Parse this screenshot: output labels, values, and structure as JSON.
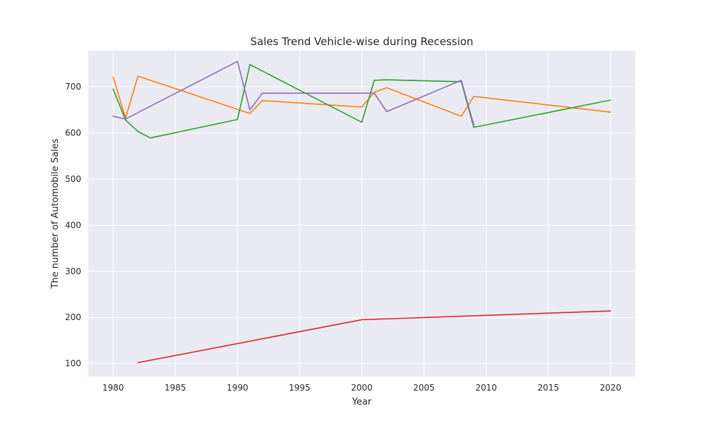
{
  "chart_data": {
    "type": "line",
    "title": "Sales Trend Vehicle-wise during Recession",
    "xlabel": "Year",
    "ylabel": "The number of Automobile Sales",
    "xlim": [
      1978,
      2022
    ],
    "ylim": [
      72,
      778
    ],
    "xticks": [
      1980,
      1985,
      1990,
      1995,
      2000,
      2005,
      2010,
      2015,
      2020
    ],
    "yticks": [
      100,
      200,
      300,
      400,
      500,
      600,
      700
    ],
    "grid": true,
    "legend": "none",
    "background": "#eaeaf2",
    "series": [
      {
        "color": "#ff7f0e",
        "x": [
          1980,
          1981,
          1982,
          1991,
          1992,
          2000,
          2001,
          2002,
          2008,
          2009,
          2020
        ],
        "y": [
          721,
          632,
          723,
          642,
          670,
          656,
          688,
          698,
          636,
          679,
          645
        ]
      },
      {
        "color": "#2ca02c",
        "x": [
          1980,
          1981,
          1982,
          1983,
          1990,
          1991,
          2000,
          2001,
          2002,
          2008,
          2009,
          2020
        ],
        "y": [
          695,
          628,
          603,
          589,
          629,
          748,
          623,
          714,
          715,
          711,
          612,
          671
        ]
      },
      {
        "color": "#9467bd",
        "x": [
          1980,
          1981,
          1990,
          1991,
          1992,
          2001,
          2002,
          2008,
          2009
        ],
        "y": [
          636,
          630,
          755,
          650,
          686,
          686,
          646,
          714,
          617
        ]
      },
      {
        "color": "#d62728",
        "x": [
          1982,
          2000,
          2020
        ],
        "y": [
          102,
          195,
          214
        ]
      }
    ]
  }
}
